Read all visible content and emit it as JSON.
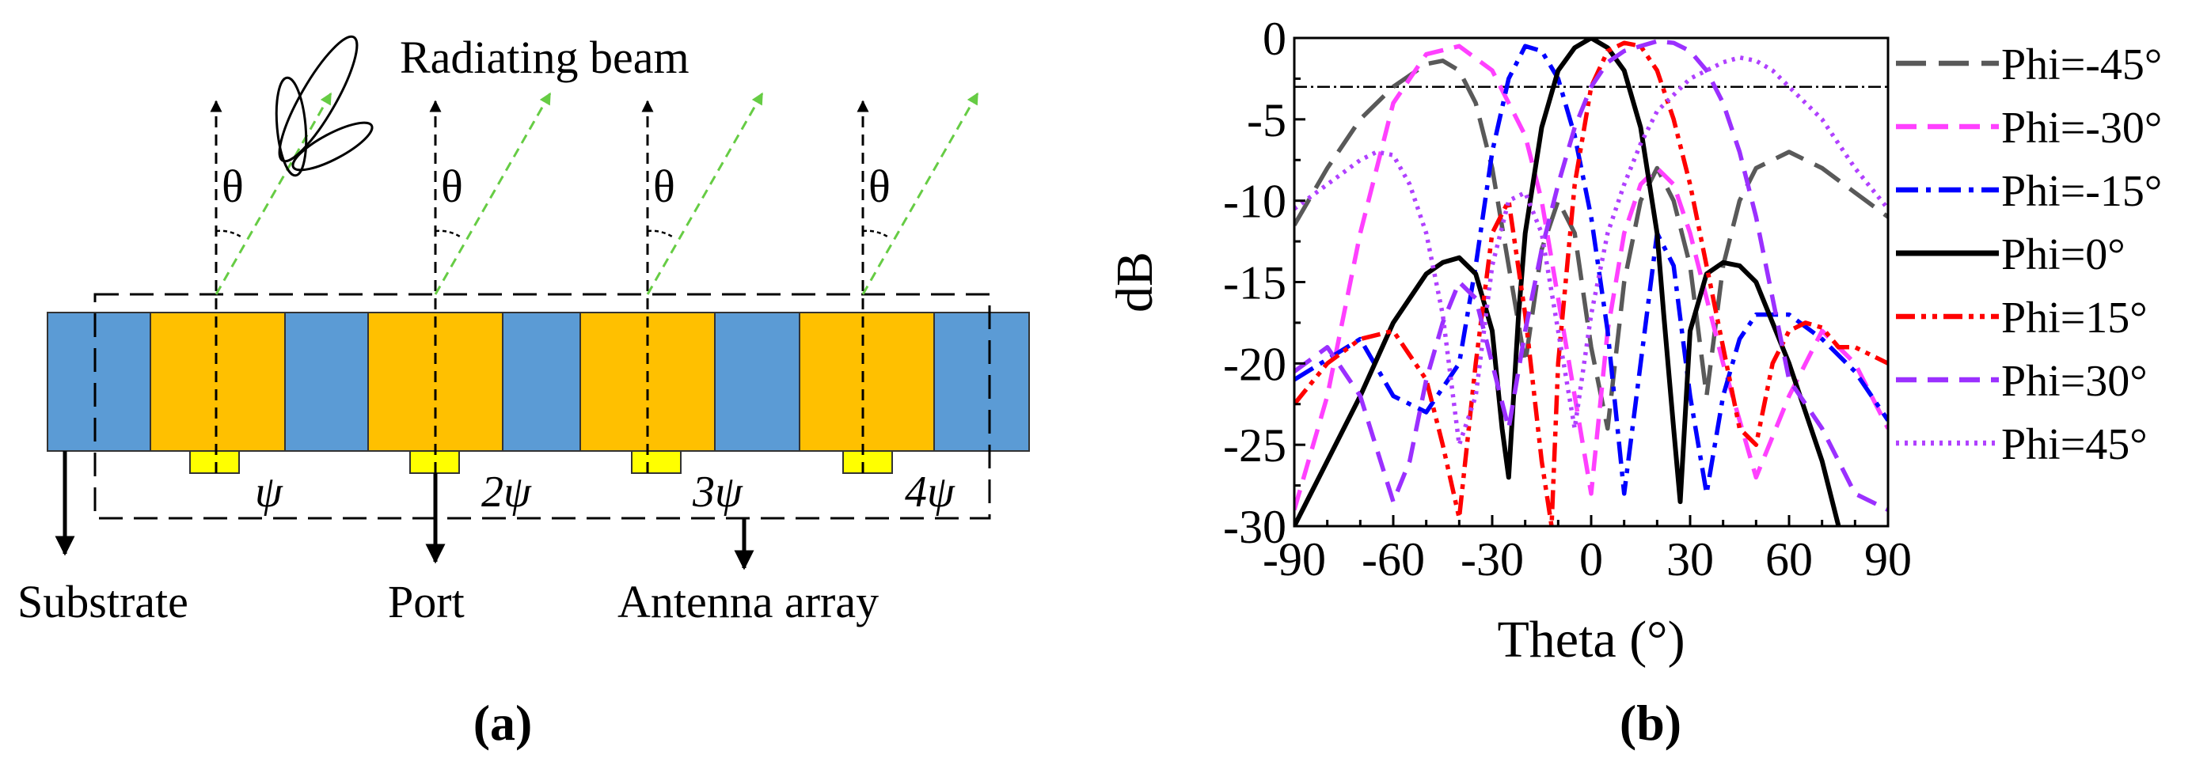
{
  "panel_a": {
    "title": "Radiating beam",
    "angle_symbol": "θ",
    "phase_labels": [
      "ψ",
      "2ψ",
      "3ψ",
      "4ψ"
    ],
    "labels": {
      "substrate": "Substrate",
      "port": "Port",
      "antenna_array": "Antenna array"
    },
    "caption": "(a)",
    "colors": {
      "substrate": "#5B9BD5",
      "patch": "#FFC000",
      "feed": "#FFFF00",
      "beam_arrow": "#66CC44"
    }
  },
  "panel_b": {
    "caption": "(b)",
    "chart_data": {
      "type": "line",
      "title": "",
      "xlabel": "Theta (°)",
      "ylabel": "dB",
      "xlim": [
        -90,
        90
      ],
      "ylim": [
        -30,
        0
      ],
      "xticks": [
        -90,
        -60,
        -30,
        0,
        30,
        60,
        90
      ],
      "yticks": [
        0,
        -5,
        -10,
        -15,
        -20,
        -25,
        -30
      ],
      "reference_line": {
        "y": -3,
        "style": "dash-dot"
      },
      "legend_position": "right",
      "series": [
        {
          "name": "Phi=-45°",
          "color": "#595959",
          "dash": "long-dash",
          "x": [
            -90,
            -80,
            -70,
            -60,
            -50,
            -45,
            -40,
            -35,
            -30,
            -25,
            -20,
            -15,
            -10,
            -5,
            0,
            5,
            10,
            15,
            20,
            25,
            30,
            35,
            40,
            45,
            50,
            60,
            70,
            80,
            90
          ],
          "y": [
            -11.5,
            -8,
            -5,
            -3,
            -1.6,
            -1.4,
            -2,
            -4,
            -8,
            -14,
            -20,
            -13,
            -10,
            -12,
            -19,
            -24,
            -15,
            -10,
            -8,
            -10,
            -14,
            -22,
            -14,
            -10,
            -8,
            -7,
            -8,
            -9.5,
            -11
          ]
        },
        {
          "name": "Phi=-30°",
          "color": "#FF40FF",
          "dash": "dash",
          "x": [
            -90,
            -80,
            -70,
            -60,
            -50,
            -40,
            -30,
            -20,
            -15,
            -10,
            -5,
            0,
            5,
            10,
            15,
            20,
            25,
            30,
            40,
            50,
            60,
            70,
            80,
            90
          ],
          "y": [
            -29,
            -22,
            -12,
            -4,
            -1,
            -0.5,
            -2,
            -6,
            -10,
            -16,
            -22,
            -28,
            -18,
            -12,
            -9,
            -8,
            -9,
            -12,
            -20,
            -27,
            -22,
            -18,
            -20,
            -24
          ]
        },
        {
          "name": "Phi=-15°",
          "color": "#0000FF",
          "dash": "dash-dot",
          "x": [
            -90,
            -70,
            -60,
            -50,
            -40,
            -35,
            -30,
            -25,
            -20,
            -15,
            -10,
            -5,
            0,
            5,
            10,
            15,
            20,
            25,
            30,
            35,
            40,
            45,
            50,
            60,
            70,
            80,
            90
          ],
          "y": [
            -21,
            -18.5,
            -22,
            -23,
            -20,
            -14,
            -7,
            -2.5,
            -0.5,
            -0.8,
            -2.5,
            -6,
            -11,
            -18,
            -28,
            -20,
            -12,
            -14,
            -22,
            -28,
            -22,
            -18.5,
            -17,
            -17,
            -18.5,
            -20.5,
            -23.5
          ]
        },
        {
          "name": "Phi=0°",
          "color": "#000000",
          "dash": "solid",
          "x": [
            -90,
            -80,
            -70,
            -60,
            -50,
            -45,
            -40,
            -35,
            -30,
            -27,
            -25,
            -22,
            -20,
            -15,
            -10,
            -5,
            0,
            5,
            10,
            15,
            20,
            22,
            25,
            27,
            30,
            35,
            40,
            45,
            50,
            60,
            70,
            75
          ],
          "y": [
            -30,
            -26,
            -22,
            -17.5,
            -14.5,
            -13.8,
            -13.5,
            -14.5,
            -18,
            -24,
            -27,
            -17,
            -12,
            -5.5,
            -2,
            -0.6,
            0,
            -0.6,
            -2,
            -5.5,
            -12,
            -17,
            -24,
            -28.5,
            -18,
            -14.5,
            -13.8,
            -14,
            -15,
            -20,
            -26,
            -30
          ]
        },
        {
          "name": "Phi=15°",
          "color": "#FF0000",
          "dash": "dash-dot-dot",
          "x": [
            -90,
            -80,
            -70,
            -60,
            -50,
            -45,
            -40,
            -35,
            -30,
            -25,
            -20,
            -15,
            -12,
            -10,
            -5,
            0,
            5,
            10,
            15,
            20,
            25,
            30,
            35,
            40,
            45,
            50,
            55,
            60,
            65,
            70,
            75,
            80,
            90
          ],
          "y": [
            -22.5,
            -20,
            -18.5,
            -18,
            -21,
            -25,
            -29.5,
            -20,
            -12,
            -10,
            -17,
            -26,
            -30,
            -20,
            -9,
            -3,
            -0.8,
            -0.3,
            -0.5,
            -2,
            -5,
            -9,
            -14,
            -19,
            -24,
            -25,
            -20,
            -18,
            -17.5,
            -17.8,
            -19,
            -19,
            -20
          ]
        },
        {
          "name": "Phi=30°",
          "color": "#9B30FF",
          "dash": "dash",
          "x": [
            -90,
            -80,
            -70,
            -60,
            -55,
            -50,
            -45,
            -40,
            -35,
            -30,
            -25,
            -20,
            -15,
            -10,
            -5,
            0,
            5,
            10,
            15,
            20,
            25,
            30,
            35,
            40,
            45,
            50,
            55,
            60,
            70,
            80,
            90
          ],
          "y": [
            -20.5,
            -19,
            -22,
            -28.5,
            -26,
            -21,
            -17.5,
            -15,
            -16,
            -20,
            -24,
            -18,
            -13,
            -9,
            -5.5,
            -3,
            -1.5,
            -0.8,
            -0.5,
            -0.2,
            -0.3,
            -0.8,
            -2,
            -4,
            -7,
            -11,
            -16,
            -21,
            -24,
            -28,
            -29
          ]
        },
        {
          "name": "Phi=45°",
          "color": "#B040FF",
          "dash": "dot",
          "x": [
            -90,
            -80,
            -70,
            -65,
            -60,
            -55,
            -50,
            -45,
            -40,
            -35,
            -30,
            -25,
            -20,
            -15,
            -10,
            -5,
            0,
            5,
            10,
            15,
            20,
            30,
            40,
            45,
            50,
            55,
            60,
            70,
            80,
            90
          ],
          "y": [
            -10.5,
            -9,
            -7.5,
            -7,
            -7.2,
            -9,
            -12,
            -17,
            -25,
            -22,
            -14,
            -10,
            -9.5,
            -12,
            -18,
            -24,
            -17,
            -12,
            -9,
            -6.5,
            -4.5,
            -2.5,
            -1.5,
            -1.2,
            -1.4,
            -2,
            -3,
            -5,
            -8,
            -10.5
          ]
        }
      ]
    }
  }
}
